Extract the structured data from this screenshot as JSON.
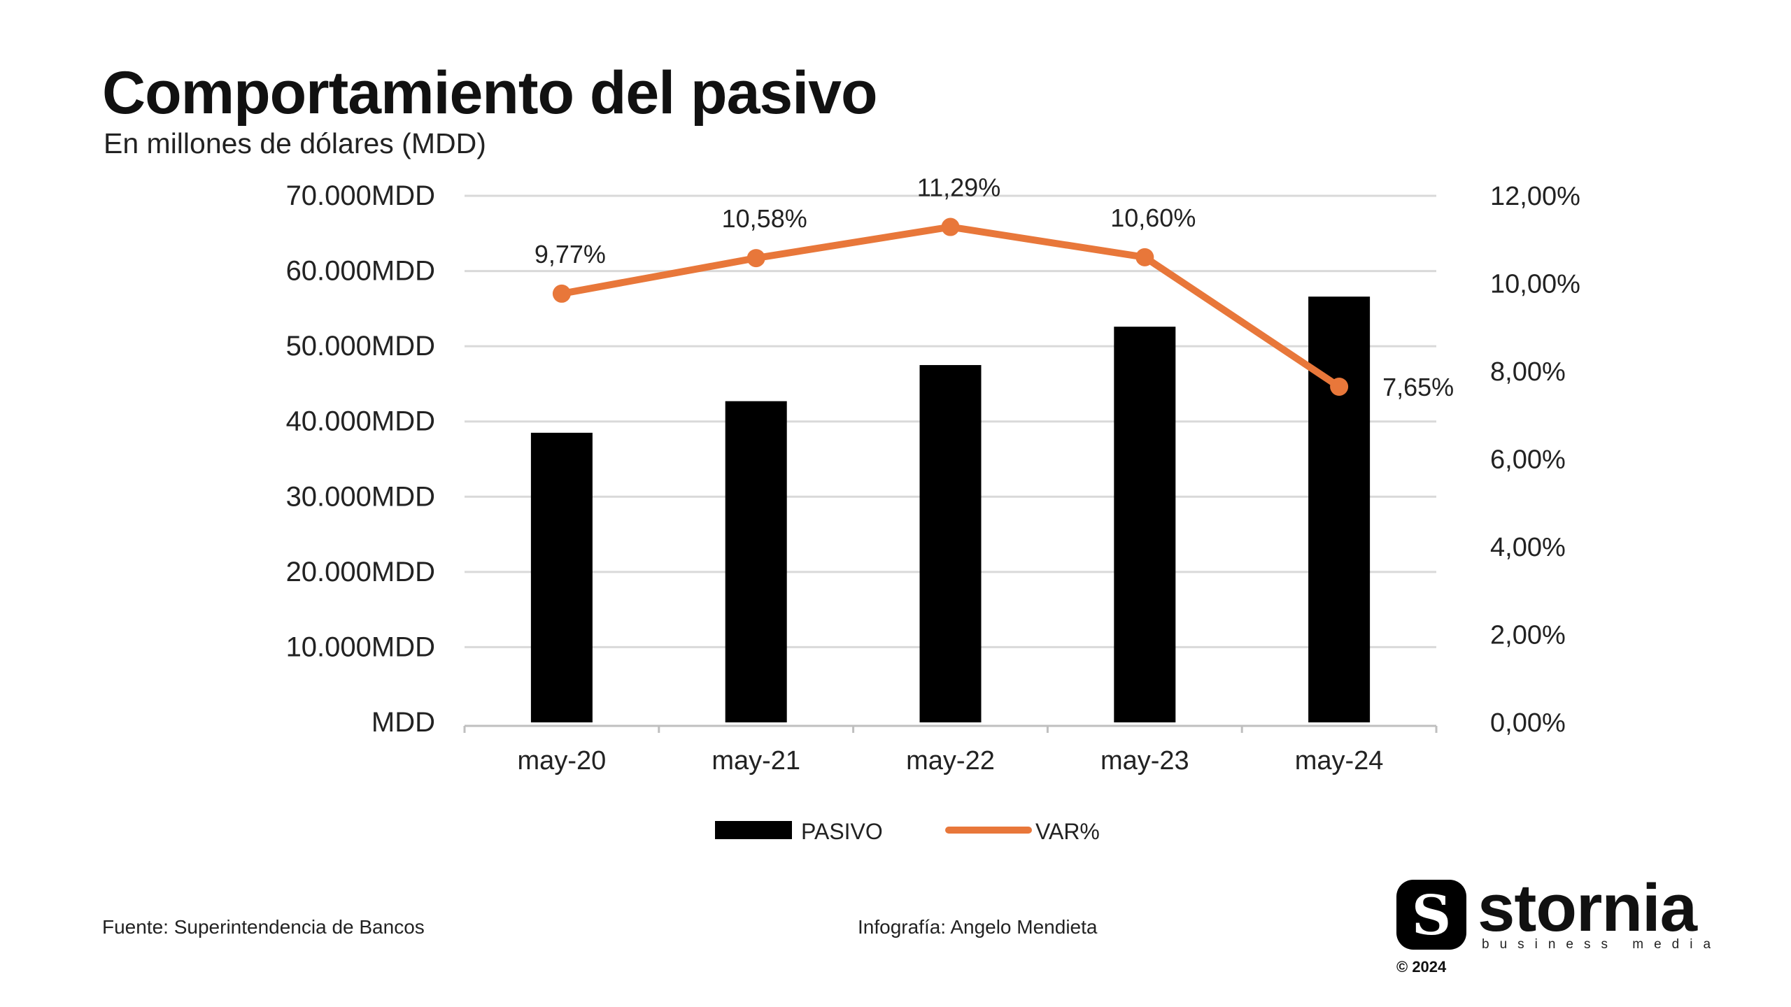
{
  "header": {
    "title": "Comportamiento del pasivo",
    "subtitle": "En millones de dólares (MDD)"
  },
  "chart_data": {
    "type": "bar",
    "categories": [
      "may-20",
      "may-21",
      "may-22",
      "may-23",
      "may-24"
    ],
    "series": [
      {
        "name": "PASIVO",
        "type": "bar",
        "axis": "left",
        "color": "#000000",
        "values": [
          38500,
          42700,
          47500,
          52600,
          56600
        ]
      },
      {
        "name": "VAR%",
        "type": "line",
        "axis": "right",
        "color": "#E8773A",
        "values": [
          9.77,
          10.58,
          11.29,
          10.6,
          7.65
        ],
        "labels": [
          "9,77%",
          "10,58%",
          "11,29%",
          "10,60%",
          "7,65%"
        ]
      }
    ],
    "y_left": {
      "ylim": [
        0,
        70000
      ],
      "ticks": [
        0,
        10000,
        20000,
        30000,
        40000,
        50000,
        60000,
        70000
      ],
      "tick_labels": [
        "MDD",
        "10.000MDD",
        "20.000MDD",
        "30.000MDD",
        "40.000MDD",
        "50.000MDD",
        "60.000MDD",
        "70.000MDD"
      ]
    },
    "y_right": {
      "ylim": [
        0,
        12
      ],
      "ticks": [
        0,
        2,
        4,
        6,
        8,
        10,
        12
      ],
      "tick_labels": [
        "0,00%",
        "2,00%",
        "4,00%",
        "6,00%",
        "8,00%",
        "10,00%",
        "12,00%"
      ]
    },
    "grid": true,
    "legend_position": "bottom",
    "legend": [
      {
        "label": "PASIVO",
        "color": "#000000",
        "kind": "bar"
      },
      {
        "label": "VAR%",
        "color": "#E8773A",
        "kind": "line"
      }
    ]
  },
  "footer": {
    "source": "Fuente: Superintendencia de Bancos",
    "credit": "Infografía: Angelo Mendieta"
  },
  "brand": {
    "badge_letter": "S",
    "name": "stornia",
    "tagline": "business media",
    "copyright": "© 2024"
  }
}
